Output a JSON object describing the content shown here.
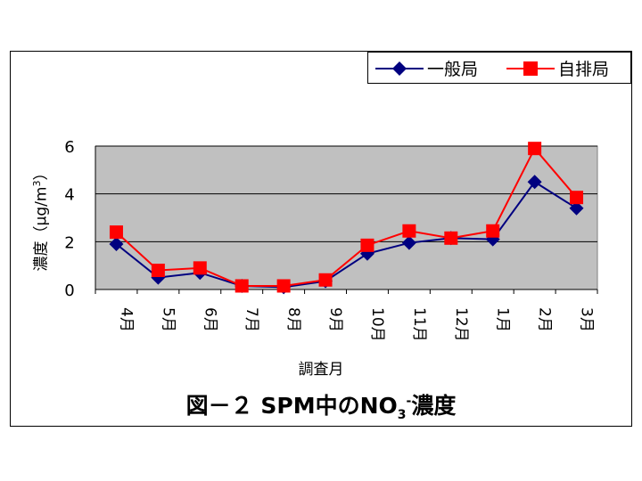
{
  "chart_data": {
    "type": "line",
    "title": "図－２ SPM中のNO3-濃度",
    "title_parts": {
      "prefix": "図－２ SPM中のNO",
      "sub": "3",
      "sup": "-",
      "suffix": "濃度"
    },
    "xlabel": "調査月",
    "ylabel": "濃度（μg/m3）",
    "ylabel_parts": {
      "main": "濃度（μg/m",
      "sup": "3",
      "close": "）"
    },
    "categories": [
      "4月",
      "5月",
      "6月",
      "7月",
      "8月",
      "9月",
      "10月",
      "11月",
      "12月",
      "1月",
      "2月",
      "3月"
    ],
    "yticks": [
      "0",
      "2",
      "4",
      "6"
    ],
    "ylim": [
      0,
      6
    ],
    "grid": true,
    "legend_position": "top-right",
    "series": [
      {
        "name": "一般局",
        "color": "#000080",
        "marker": "diamond",
        "values": [
          1.9,
          0.5,
          0.7,
          0.15,
          0.1,
          0.35,
          1.5,
          1.95,
          2.15,
          2.1,
          4.5,
          3.4
        ]
      },
      {
        "name": "自排局",
        "color": "#ff0000",
        "marker": "square",
        "values": [
          2.4,
          0.8,
          0.9,
          0.15,
          0.15,
          0.4,
          1.85,
          2.45,
          2.15,
          2.45,
          5.9,
          3.85
        ]
      }
    ],
    "plot_background": "#c0c0c0"
  }
}
